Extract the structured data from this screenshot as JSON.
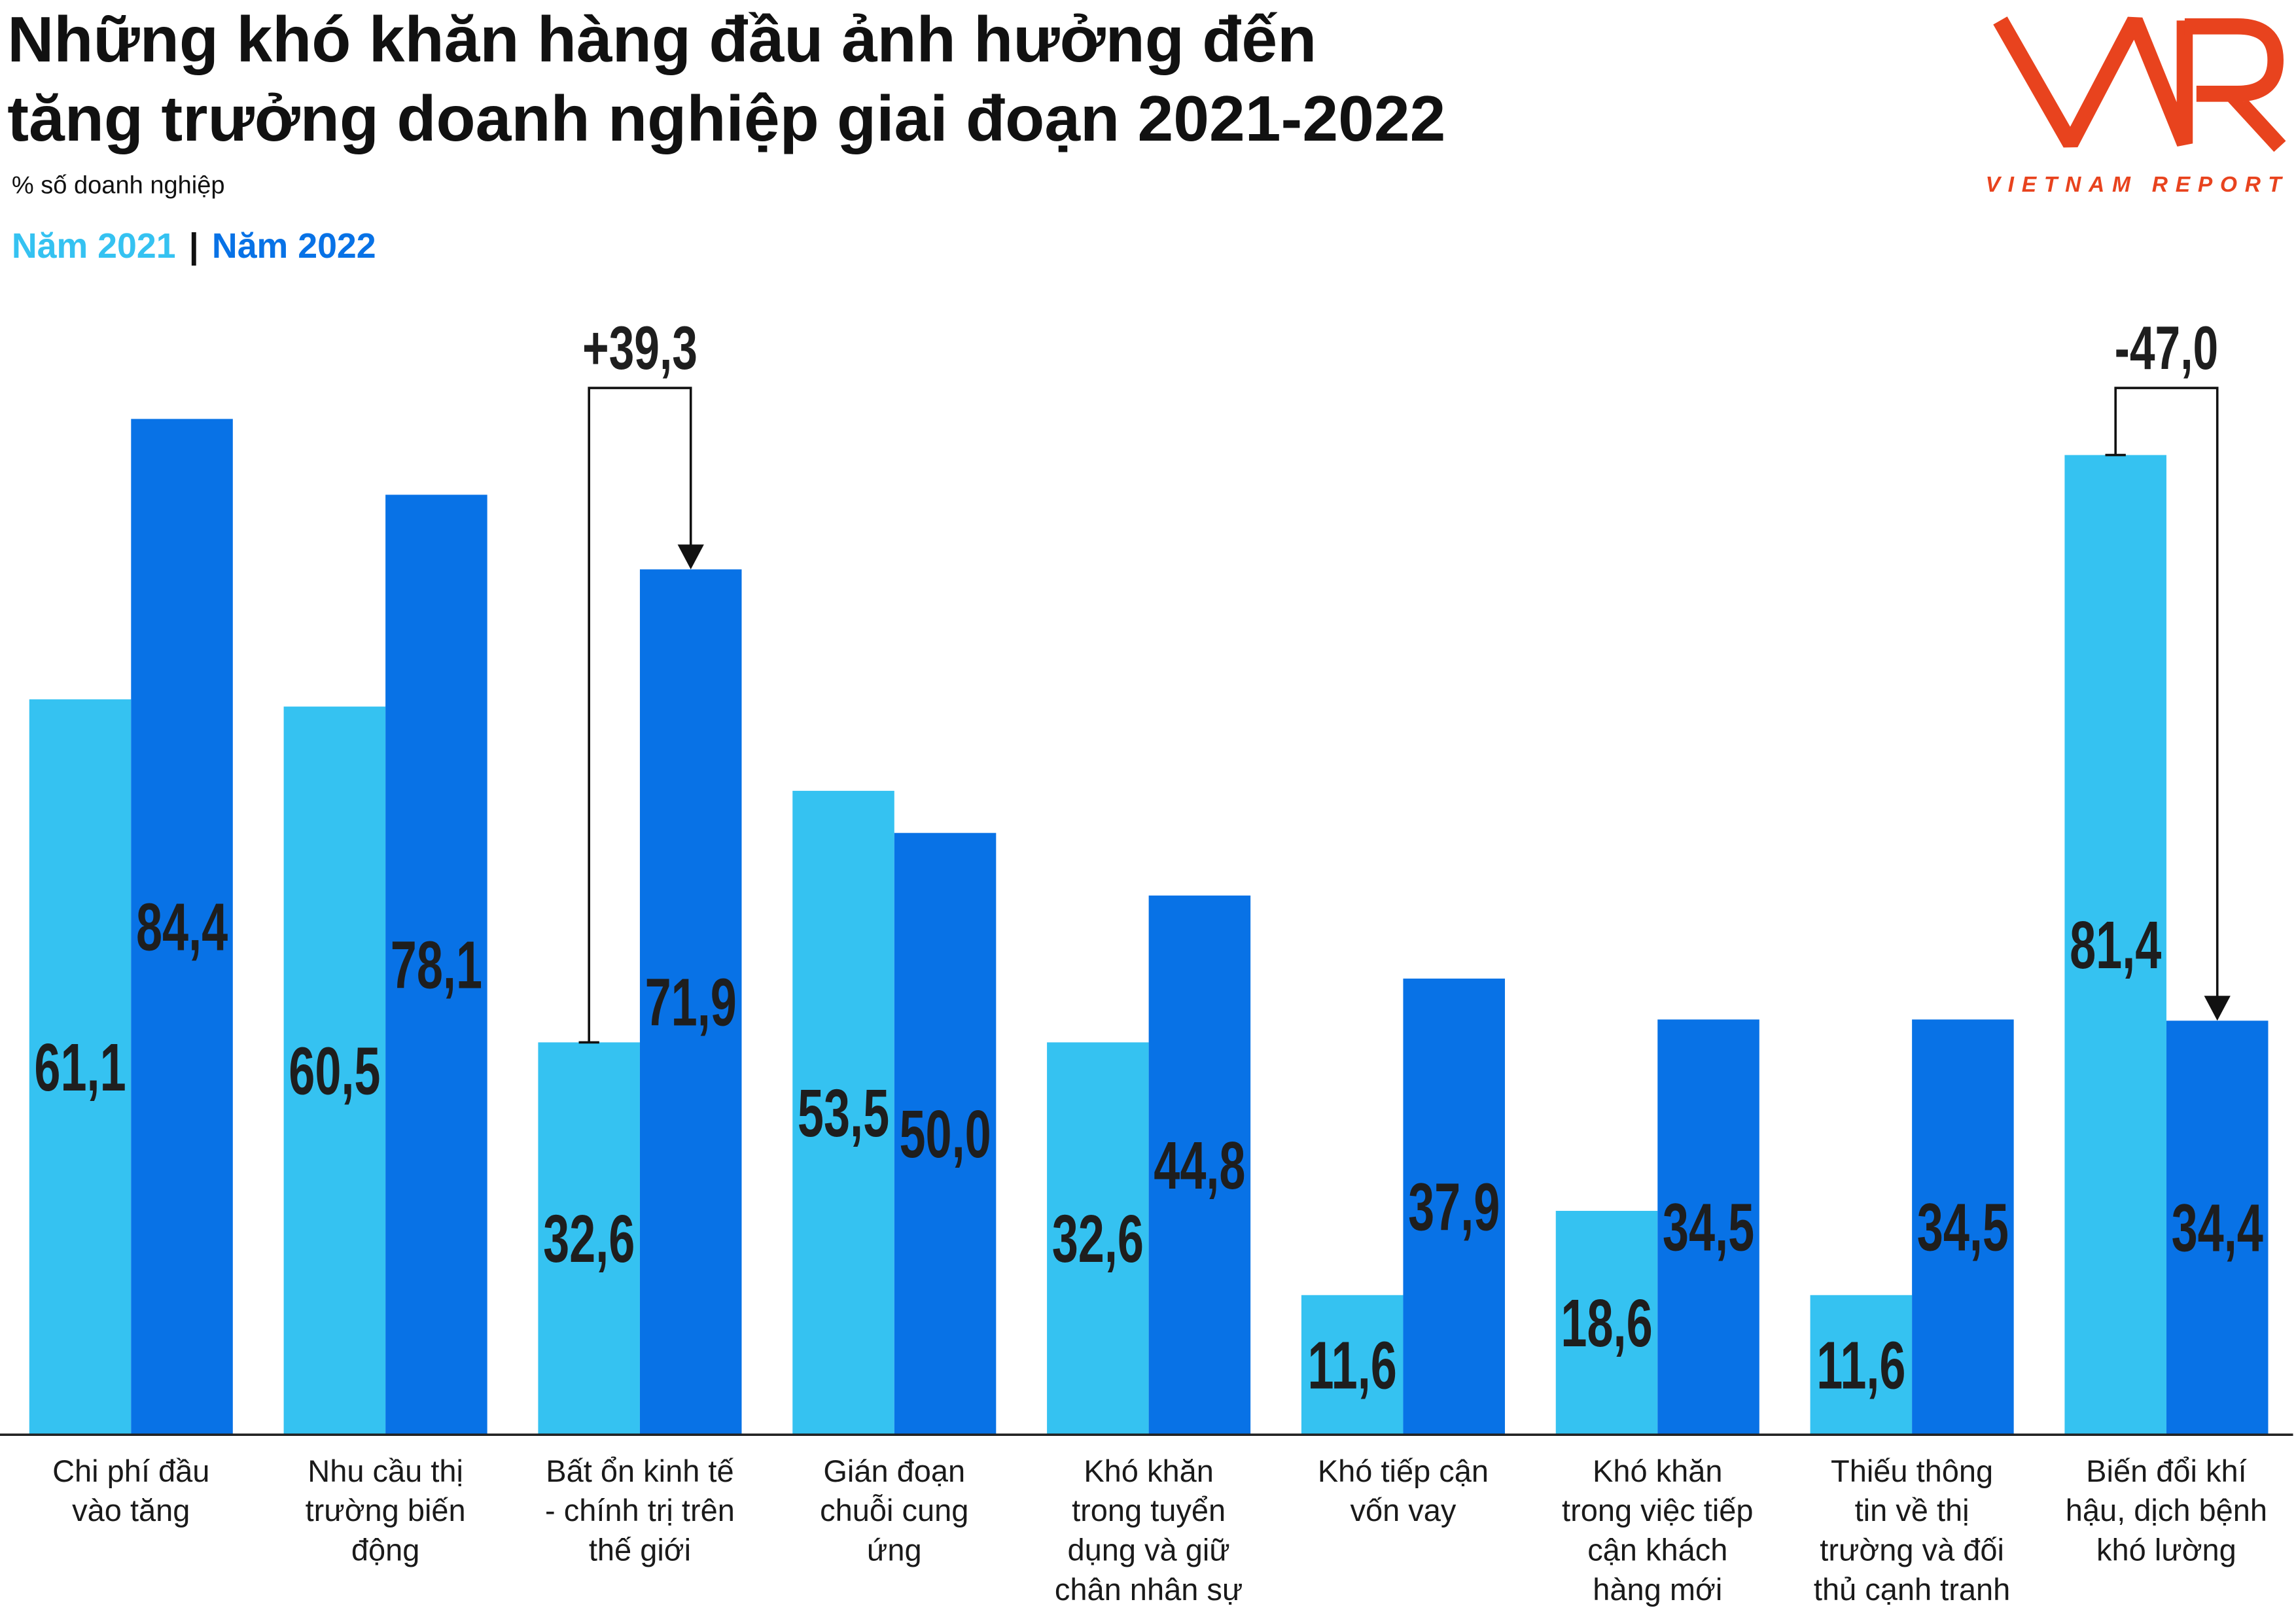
{
  "chart_data": {
    "type": "bar",
    "title": [
      "Những khó khăn hàng đầu ảnh hưởng đến",
      "tăng trưởng doanh nghiệp giai đoạn 2021-2022"
    ],
    "ylabel": "% số doanh nghiệp",
    "xlabel": "",
    "ylim": [
      0,
      95
    ],
    "grid": false,
    "categories": [
      [
        "Chi phí đầu",
        "vào tăng"
      ],
      [
        "Nhu cầu thị",
        "trường biến",
        "động"
      ],
      [
        "Bất ổn kinh tế",
        "- chính trị trên",
        "thế giới"
      ],
      [
        "Gián đoạn",
        "chuỗi cung",
        "ứng"
      ],
      [
        "Khó khăn",
        "trong tuyển",
        "dụng và giữ",
        "chân nhân sự"
      ],
      [
        "Khó tiếp cận",
        "vốn vay"
      ],
      [
        "Khó khăn",
        "trong việc tiếp",
        "cận khách",
        "hàng mới"
      ],
      [
        "Thiếu thông",
        "tin về thị",
        "trường và đối",
        "thủ cạnh tranh"
      ],
      [
        "Biến đổi khí",
        "hậu, dịch bệnh",
        "khó lường"
      ]
    ],
    "series": [
      {
        "name": "Năm 2021",
        "color": "#35c2f1",
        "values": [
          61.1,
          60.5,
          32.6,
          53.5,
          32.6,
          11.6,
          18.6,
          11.6,
          81.4
        ],
        "labels": [
          "61,1",
          "60,5",
          "32,6",
          "53,5",
          "32,6",
          "11,6",
          "18,6",
          "11,6",
          "81,4"
        ]
      },
      {
        "name": "Năm 2022",
        "color": "#0872e6",
        "values": [
          84.4,
          78.1,
          71.9,
          50.0,
          44.8,
          37.9,
          34.5,
          34.5,
          34.4
        ],
        "labels": [
          "84,4",
          "78,1",
          "71,9",
          "50,0",
          "44,8",
          "37,9",
          "34,5",
          "34,5",
          "34,4"
        ]
      }
    ],
    "annotations": [
      {
        "category_index": 2,
        "from": "Năm 2021",
        "to": "Năm 2022",
        "change": 39.3,
        "label": "+39,3"
      },
      {
        "category_index": 8,
        "from": "Năm 2021",
        "to": "Năm 2022",
        "change": -47.0,
        "label": "-47,0"
      }
    ]
  },
  "legend": {
    "separator": "|"
  },
  "logo": {
    "brand": "VNR",
    "tagline": "VIETNAM REPORT",
    "color": "#e8431e"
  },
  "colors": {
    "text": "#111111",
    "axis": "#222222",
    "annotation": "#111111"
  }
}
